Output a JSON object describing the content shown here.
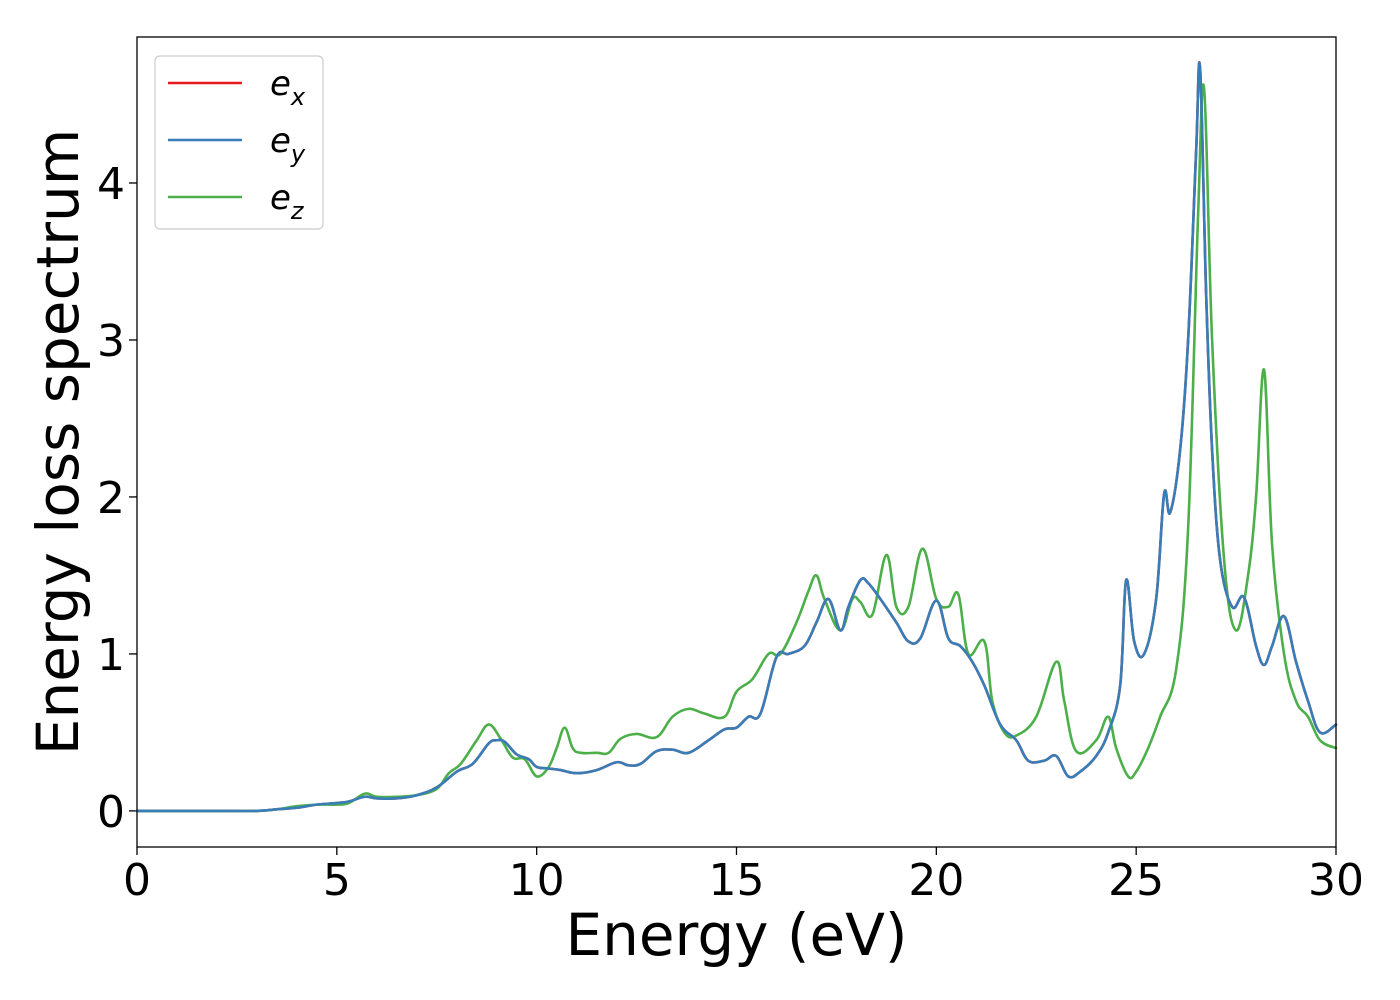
{
  "chart_data": {
    "type": "line",
    "title": "",
    "xlabel": "Energy (eV)",
    "ylabel": "Energy loss spectrum",
    "xlim": [
      0,
      30
    ],
    "ylim": [
      -0.23,
      4.93
    ],
    "xticks": [
      0,
      5,
      10,
      15,
      20,
      25,
      30
    ],
    "yticks": [
      0,
      1,
      2,
      3,
      4
    ],
    "xtick_labels": [
      "0",
      "5",
      "10",
      "15",
      "20",
      "25",
      "30"
    ],
    "ytick_labels": [
      "0",
      "1",
      "2",
      "3",
      "4"
    ],
    "grid": false,
    "legend_position": "top-left",
    "series": [
      {
        "name": "e",
        "subscript": "x",
        "color": "#e41a1c",
        "x": [
          0,
          1,
          2,
          3,
          3.5,
          4,
          4.5,
          5,
          5.3,
          5.7,
          6,
          6.5,
          7,
          7.5,
          8,
          8.4,
          8.8,
          9.0,
          9.2,
          9.5,
          9.8,
          10,
          10.3,
          10.6,
          11,
          11.5,
          12,
          12.3,
          12.6,
          13,
          13.4,
          13.8,
          14.3,
          14.7,
          15,
          15.3,
          15.6,
          16,
          16.3,
          16.7,
          17,
          17.3,
          17.6,
          17.8,
          18.1,
          18.3,
          18.6,
          19,
          19.3,
          19.6,
          20,
          20.3,
          20.6,
          20.9,
          21.2,
          21.6,
          22,
          22.3,
          22.7,
          23,
          23.3,
          23.6,
          24,
          24.3,
          24.6,
          24.75,
          24.95,
          25.2,
          25.5,
          25.7,
          25.85,
          26.1,
          26.3,
          26.5,
          26.6,
          26.75,
          26.9,
          27.1,
          27.4,
          27.7,
          28,
          28.2,
          28.4,
          28.7,
          29,
          29.3,
          29.6,
          30
        ],
        "y": [
          0,
          0,
          0,
          0,
          0.01,
          0.02,
          0.04,
          0.05,
          0.06,
          0.09,
          0.08,
          0.08,
          0.1,
          0.15,
          0.25,
          0.3,
          0.43,
          0.45,
          0.44,
          0.36,
          0.33,
          0.28,
          0.27,
          0.26,
          0.24,
          0.26,
          0.31,
          0.29,
          0.3,
          0.38,
          0.39,
          0.37,
          0.45,
          0.52,
          0.53,
          0.6,
          0.62,
          0.98,
          1.0,
          1.05,
          1.2,
          1.35,
          1.15,
          1.3,
          1.47,
          1.45,
          1.35,
          1.2,
          1.08,
          1.1,
          1.34,
          1.1,
          1.05,
          0.95,
          0.8,
          0.55,
          0.45,
          0.32,
          0.32,
          0.35,
          0.22,
          0.25,
          0.35,
          0.5,
          0.8,
          1.47,
          1.08,
          1.0,
          1.35,
          2.02,
          1.9,
          2.3,
          3.0,
          4.2,
          4.73,
          3.3,
          2.3,
          1.6,
          1.3,
          1.36,
          1.05,
          0.93,
          1.05,
          1.24,
          0.95,
          0.7,
          0.5,
          0.55
        ]
      },
      {
        "name": "e",
        "subscript": "y",
        "color": "#377eb8",
        "x": [
          0,
          1,
          2,
          3,
          3.5,
          4,
          4.5,
          5,
          5.3,
          5.7,
          6,
          6.5,
          7,
          7.5,
          8,
          8.4,
          8.8,
          9.0,
          9.2,
          9.5,
          9.8,
          10,
          10.3,
          10.6,
          11,
          11.5,
          12,
          12.3,
          12.6,
          13,
          13.4,
          13.8,
          14.3,
          14.7,
          15,
          15.3,
          15.6,
          16,
          16.3,
          16.7,
          17,
          17.3,
          17.6,
          17.8,
          18.1,
          18.3,
          18.6,
          19,
          19.3,
          19.6,
          20,
          20.3,
          20.6,
          20.9,
          21.2,
          21.6,
          22,
          22.3,
          22.7,
          23,
          23.3,
          23.6,
          24,
          24.3,
          24.6,
          24.75,
          24.95,
          25.2,
          25.5,
          25.7,
          25.85,
          26.1,
          26.3,
          26.5,
          26.6,
          26.75,
          26.9,
          27.1,
          27.4,
          27.7,
          28,
          28.2,
          28.4,
          28.7,
          29,
          29.3,
          29.6,
          30
        ],
        "y": [
          0,
          0,
          0,
          0,
          0.01,
          0.02,
          0.04,
          0.05,
          0.06,
          0.09,
          0.08,
          0.08,
          0.1,
          0.15,
          0.25,
          0.3,
          0.43,
          0.45,
          0.44,
          0.36,
          0.33,
          0.28,
          0.27,
          0.26,
          0.24,
          0.26,
          0.31,
          0.29,
          0.3,
          0.38,
          0.39,
          0.37,
          0.45,
          0.52,
          0.53,
          0.6,
          0.62,
          0.98,
          1.0,
          1.05,
          1.2,
          1.35,
          1.15,
          1.3,
          1.47,
          1.45,
          1.35,
          1.2,
          1.08,
          1.1,
          1.34,
          1.1,
          1.05,
          0.95,
          0.8,
          0.55,
          0.45,
          0.32,
          0.32,
          0.35,
          0.22,
          0.25,
          0.35,
          0.5,
          0.8,
          1.47,
          1.08,
          1.0,
          1.35,
          2.02,
          1.9,
          2.3,
          3.0,
          4.2,
          4.73,
          3.3,
          2.3,
          1.6,
          1.3,
          1.36,
          1.05,
          0.93,
          1.05,
          1.24,
          0.95,
          0.7,
          0.5,
          0.55
        ]
      },
      {
        "name": "e",
        "subscript": "z",
        "color": "#4daf4a",
        "x": [
          0,
          1,
          2,
          3,
          3.5,
          4,
          4.5,
          5,
          5.3,
          5.7,
          6,
          6.5,
          7,
          7.5,
          7.8,
          8.1,
          8.5,
          8.8,
          9.1,
          9.4,
          9.7,
          10,
          10.3,
          10.5,
          10.7,
          10.9,
          11.1,
          11.5,
          11.8,
          12.1,
          12.5,
          13,
          13.4,
          13.8,
          14.2,
          14.7,
          15,
          15.4,
          15.8,
          16.1,
          16.5,
          16.8,
          17.0,
          17.2,
          17.6,
          17.9,
          18.1,
          18.4,
          18.75,
          19.0,
          19.3,
          19.65,
          20.0,
          20.3,
          20.55,
          20.8,
          21.2,
          21.4,
          21.7,
          22,
          22.5,
          23.0,
          23.2,
          23.5,
          24,
          24.3,
          24.5,
          24.8,
          25,
          25.3,
          25.6,
          26.0,
          26.3,
          26.55,
          26.7,
          26.9,
          27.2,
          27.5,
          27.8,
          28.0,
          28.2,
          28.4,
          28.7,
          29,
          29.3,
          29.6,
          30
        ],
        "y": [
          0,
          0,
          0,
          0,
          0.01,
          0.03,
          0.04,
          0.04,
          0.05,
          0.11,
          0.09,
          0.09,
          0.1,
          0.14,
          0.24,
          0.3,
          0.45,
          0.55,
          0.46,
          0.34,
          0.33,
          0.22,
          0.28,
          0.4,
          0.53,
          0.4,
          0.37,
          0.37,
          0.37,
          0.46,
          0.49,
          0.47,
          0.6,
          0.65,
          0.62,
          0.6,
          0.76,
          0.84,
          1.0,
          1.0,
          1.2,
          1.4,
          1.5,
          1.35,
          1.15,
          1.35,
          1.33,
          1.25,
          1.63,
          1.3,
          1.3,
          1.67,
          1.35,
          1.3,
          1.38,
          1.0,
          1.08,
          0.7,
          0.5,
          0.48,
          0.6,
          0.95,
          0.7,
          0.38,
          0.45,
          0.6,
          0.4,
          0.22,
          0.25,
          0.4,
          0.6,
          0.9,
          1.8,
          3.8,
          4.6,
          3.0,
          1.6,
          1.15,
          1.5,
          2.0,
          2.81,
          1.7,
          1.0,
          0.7,
          0.6,
          0.45,
          0.4
        ]
      }
    ]
  }
}
